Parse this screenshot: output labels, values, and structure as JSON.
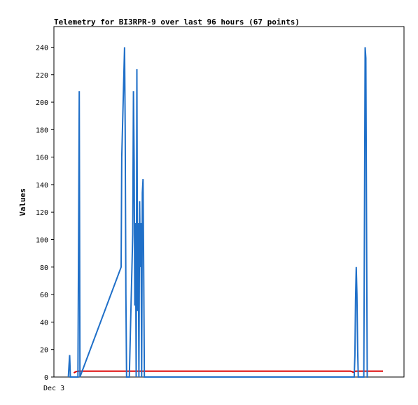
{
  "chart_data": {
    "type": "line",
    "title": "Telemetry for BI3RPR-9 over last 96 hours (67 points)",
    "xlabel": "",
    "ylabel": "Values",
    "x_tick_labels": [
      "Dec 3"
    ],
    "y_ticks": [
      0,
      20,
      40,
      60,
      80,
      100,
      120,
      140,
      160,
      180,
      200,
      220,
      240
    ],
    "xlim": [
      0,
      96
    ],
    "ylim": [
      0,
      255
    ],
    "grid": false,
    "colors": {
      "series_blue": "#1f6fc8",
      "series_red": "#dd0000",
      "baseline": "#000000"
    },
    "series": [
      {
        "color": "#1f6fc8",
        "x": [
          4.2,
          4.4,
          4.6,
          4.8,
          7.0,
          7.2,
          7.4,
          7.6,
          19.6,
          19.8,
          20.6,
          20.8,
          21.0,
          21.2,
          21.4,
          22.0,
          23.0,
          23.2,
          23.4,
          23.6,
          23.8,
          24.0,
          24.2,
          24.4,
          24.6,
          24.8,
          25.0,
          25.2,
          25.4,
          25.6,
          25.8,
          26.0,
          26.2,
          26.4,
          26.6,
          87.6,
          87.8,
          88.0,
          88.2,
          88.4,
          88.6,
          88.8,
          89.0,
          89.2,
          90.4,
          90.6,
          90.8,
          91.0,
          91.2,
          91.4,
          91.6
        ],
        "y": [
          0,
          8,
          16,
          0,
          0,
          104,
          208,
          0,
          80,
          160,
          240,
          180,
          60,
          0,
          0,
          0,
          104,
          208,
          156,
          52,
          112,
          0,
          224,
          48,
          112,
          0,
          128,
          80,
          112,
          0,
          134,
          144,
          72,
          0,
          0,
          0,
          16,
          56,
          80,
          60,
          20,
          0,
          0,
          0,
          0,
          120,
          240,
          232,
          112,
          0,
          0
        ]
      },
      {
        "color": "#dd0000",
        "x": [
          5.8,
          6.2,
          6.6,
          7.0,
          7.4,
          10,
          20,
          40,
          60,
          80,
          86.5,
          86.9,
          87.3,
          88.0,
          96
        ],
        "y": [
          3,
          3.6,
          4.0,
          4.2,
          4.3,
          4.3,
          4.3,
          4.3,
          4.3,
          4.3,
          4.3,
          4.0,
          3.5,
          4.3,
          4.3
        ]
      },
      {
        "color": "#000000",
        "x": [
          0,
          96
        ],
        "y": [
          0,
          0
        ]
      }
    ]
  }
}
